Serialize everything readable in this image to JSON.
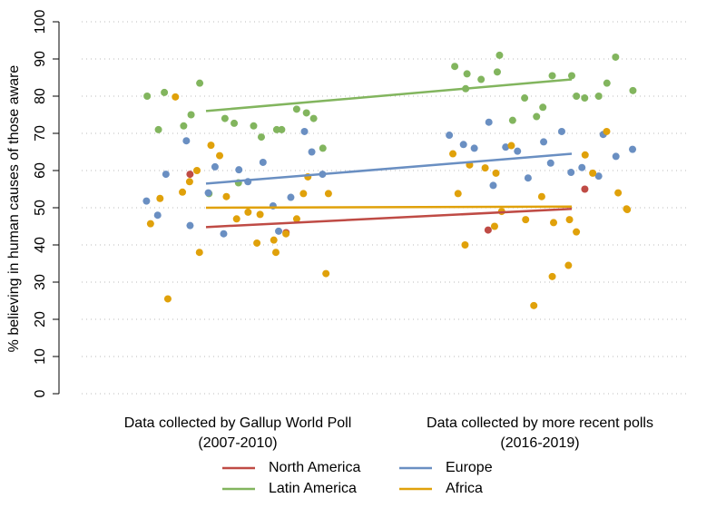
{
  "chart_data": {
    "type": "scatter",
    "y_label": "% believing in human causes of those aware",
    "categories": [
      [
        "Data collected by Gallup World Poll",
        "(2007-2010)"
      ],
      [
        "Data collected by more recent polls",
        "(2016-2019)"
      ]
    ],
    "ylim": [
      0,
      100
    ],
    "yticks": [
      0,
      10,
      20,
      30,
      40,
      50,
      60,
      70,
      80,
      90,
      100
    ],
    "grid": true,
    "legend": "bottom",
    "series": [
      {
        "name": "North America",
        "color": "#bf4b45",
        "values": [
          [
            59,
            43.3
          ],
          [
            44,
            55
          ]
        ],
        "trend": [
          44.8,
          49.7
        ]
      },
      {
        "name": "Latin America",
        "color": "#82b55e",
        "values": [
          [
            80,
            71,
            81,
            72,
            75,
            83.5,
            53.8,
            74,
            72.7,
            56.7,
            72,
            69,
            71,
            71,
            76.5,
            75.5,
            74,
            66
          ],
          [
            88,
            82,
            86,
            84.5,
            86.5,
            91,
            73.5,
            79.5,
            74.5,
            77,
            85.5,
            85.5,
            80,
            79.5,
            80,
            83.5,
            90.5,
            81.5
          ]
        ],
        "trend": [
          76,
          84.5
        ]
      },
      {
        "name": "Europe",
        "color": "#6a8fc2",
        "values": [
          [
            51.8,
            48,
            59,
            68,
            45.2,
            54,
            61,
            43,
            60.2,
            57,
            62.2,
            50.5,
            43.7,
            52.8,
            70.5,
            65,
            59
          ],
          [
            69.5,
            67,
            66,
            73,
            56,
            66.3,
            65.2,
            58,
            67.7,
            62,
            70.5,
            59.5,
            60.8,
            58.5,
            69.7,
            63.8,
            65.7
          ]
        ],
        "trend": [
          56.5,
          64.5
        ]
      },
      {
        "name": "Africa",
        "color": "#e0a10a",
        "values": [
          [
            45.7,
            52.5,
            25.5,
            79.8,
            54.2,
            57,
            60,
            38,
            66.8,
            64,
            53,
            47,
            48.8,
            40.5,
            48.2,
            38,
            41.3,
            43,
            47,
            53.8,
            58.3,
            32.3,
            53.8
          ],
          [
            64.5,
            53.8,
            40,
            61.5,
            60.7,
            45,
            59.3,
            49,
            66.7,
            46.8,
            23.7,
            53,
            31.5,
            46,
            34.5,
            46.8,
            43.5,
            64.2,
            59.3,
            70.5,
            54,
            49.7,
            49.5
          ]
        ],
        "trend": [
          50,
          50.3
        ]
      }
    ]
  }
}
